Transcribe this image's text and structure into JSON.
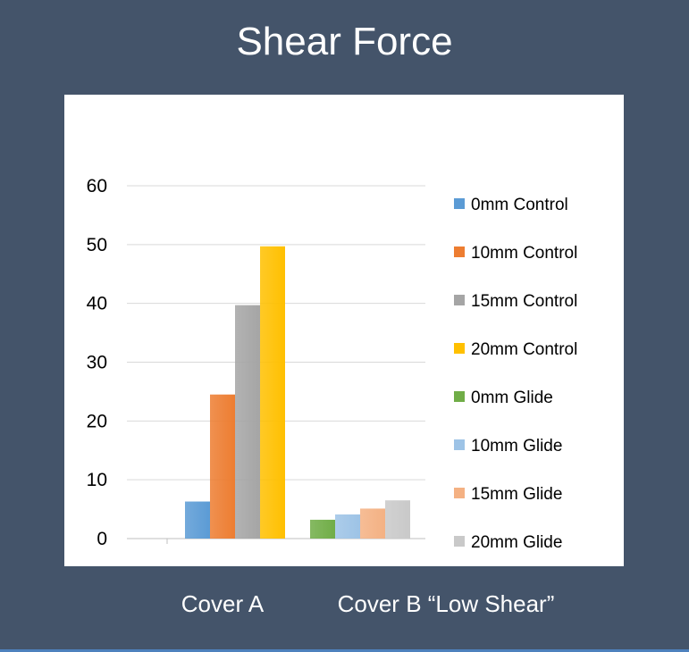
{
  "page": {
    "title": "Shear Force"
  },
  "chart_data": {
    "type": "bar",
    "title": "Shear Force",
    "categories": [
      "Cover A",
      "Cover B “Low Shear”"
    ],
    "ylim": [
      0,
      60
    ],
    "yticks": [
      0,
      10,
      20,
      30,
      40,
      50,
      60
    ],
    "grid": true,
    "legend_position": "right",
    "series": [
      {
        "name": "0mm Control",
        "color": "#5B9BD5",
        "values": [
          6.3,
          null
        ]
      },
      {
        "name": "10mm Control",
        "color": "#ED7D31",
        "values": [
          24.5,
          null
        ]
      },
      {
        "name": "15mm Control",
        "color": "#A5A5A5",
        "values": [
          39.7,
          null
        ]
      },
      {
        "name": "20mm Control",
        "color": "#FFC000",
        "values": [
          49.7,
          null
        ]
      },
      {
        "name": "0mm Glide",
        "color": "#70AD47",
        "values": [
          null,
          3.2
        ]
      },
      {
        "name": "10mm Glide",
        "color": "#9DC3E6",
        "values": [
          null,
          4.1
        ]
      },
      {
        "name": "15mm Glide",
        "color": "#F4B183",
        "values": [
          null,
          5.1
        ]
      },
      {
        "name": "20mm Glide",
        "color": "#C9C9C9",
        "values": [
          null,
          6.5
        ]
      }
    ]
  }
}
